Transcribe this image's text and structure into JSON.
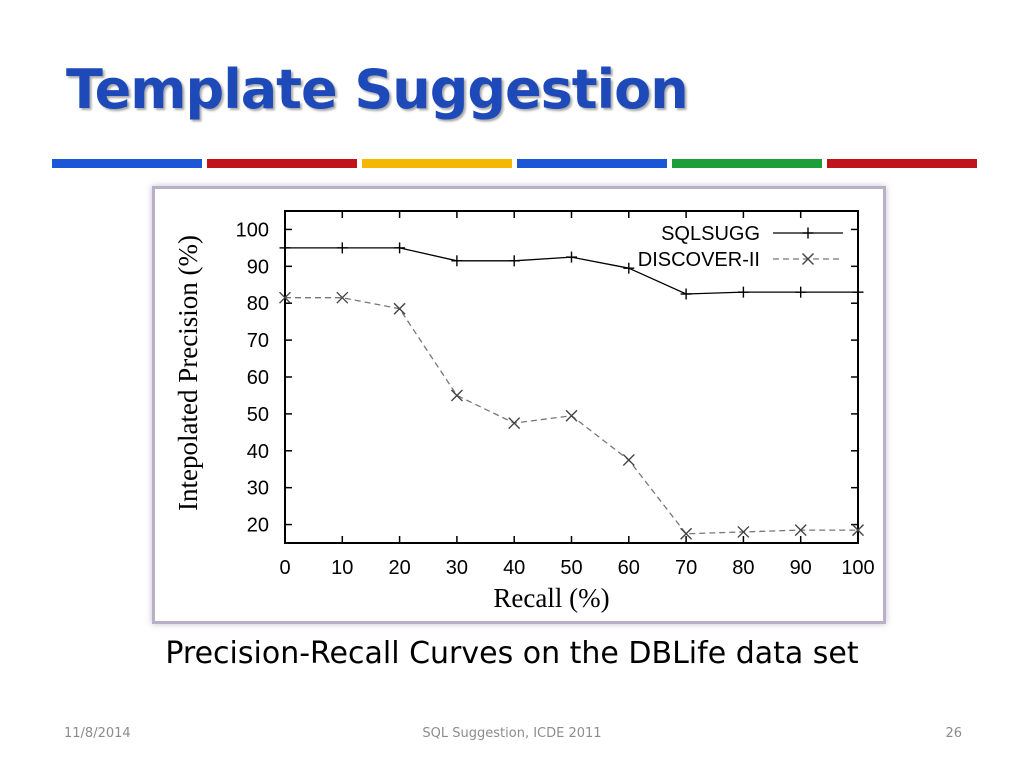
{
  "slide": {
    "title": "Template Suggestion",
    "caption": "Precision-Recall Curves on the DBLife data set",
    "footer": {
      "date": "11/8/2014",
      "center": "SQL Suggestion, ICDE 2011",
      "page": "26"
    },
    "accent_bar_colors": [
      "#1a56d6",
      "#c0141c",
      "#f5b800",
      "#1a56d6",
      "#1e9e3a",
      "#c0141c"
    ]
  },
  "chart_data": {
    "type": "line",
    "xlabel": "Recall (%)",
    "ylabel": "Intepolated Precision (%)",
    "xlim": [
      0,
      100
    ],
    "ylim": [
      15,
      105
    ],
    "xticks": [
      "0",
      "10",
      "20",
      "30",
      "40",
      "50",
      "60",
      "70",
      "80",
      "90",
      "100"
    ],
    "yticks": [
      "20",
      "30",
      "40",
      "50",
      "60",
      "70",
      "80",
      "90",
      "100"
    ],
    "legend_position": "top-right",
    "grid": false,
    "series": [
      {
        "name": "SQLSUGG",
        "marker": "plus",
        "line_style": "solid",
        "color": "#000000",
        "x": [
          0,
          10,
          20,
          30,
          40,
          50,
          60,
          70,
          80,
          90,
          100
        ],
        "y": [
          95,
          95,
          95,
          91.5,
          91.5,
          92.5,
          89.5,
          82.5,
          83,
          83,
          83
        ]
      },
      {
        "name": "DISCOVER-II",
        "marker": "cross",
        "line_style": "dashed",
        "color": "#777777",
        "x": [
          0,
          10,
          20,
          30,
          40,
          50,
          60,
          70,
          80,
          90,
          100
        ],
        "y": [
          81.5,
          81.5,
          78.5,
          55,
          47.5,
          49.5,
          37.5,
          17.5,
          18,
          18.5,
          18.5
        ]
      }
    ]
  }
}
